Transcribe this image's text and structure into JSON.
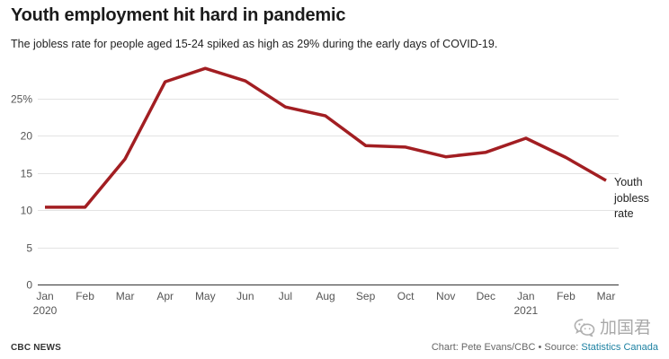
{
  "chart_data": {
    "type": "line",
    "title": "Youth employment hit hard in pandemic",
    "subtitle": "The jobless rate for people aged 15-24 spiked as high as 29% during the early days of COVID-19.",
    "xlabel": "",
    "ylabel": "",
    "categories": [
      "Jan",
      "Feb",
      "Mar",
      "Apr",
      "May",
      "Jun",
      "Jul",
      "Aug",
      "Sep",
      "Oct",
      "Nov",
      "Dec",
      "Jan",
      "Feb",
      "Mar"
    ],
    "category_years": [
      "2020",
      "",
      "",
      "",
      "",
      "",
      "",
      "",
      "",
      "",
      "",
      "",
      "2021",
      "",
      ""
    ],
    "ylim": [
      0,
      29
    ],
    "yticks": [
      0,
      5,
      10,
      15,
      20,
      25
    ],
    "ytick_labels": [
      "0",
      "5",
      "10",
      "15",
      "20",
      "25%"
    ],
    "grid": true,
    "legend": "line-end",
    "series": [
      {
        "name": "Youth jobless rate",
        "color": "#a21e22",
        "values": [
          10.4,
          10.4,
          16.9,
          27.3,
          29.1,
          27.4,
          23.9,
          22.7,
          18.7,
          18.5,
          17.2,
          17.8,
          19.7,
          17.1,
          14.0
        ]
      }
    ]
  },
  "footer": {
    "brand": "CBC NEWS",
    "credit": "Chart: Pete Evans/CBC",
    "separator": "•",
    "source_label": "Source:",
    "source_link": "Statistics Canada"
  },
  "watermark": {
    "icon": "wechat-icon",
    "text": "加国君"
  },
  "colors": {
    "link": "#1d81a2",
    "grid": "#e3e3e3",
    "axis": "#333333",
    "text": "#222222"
  }
}
